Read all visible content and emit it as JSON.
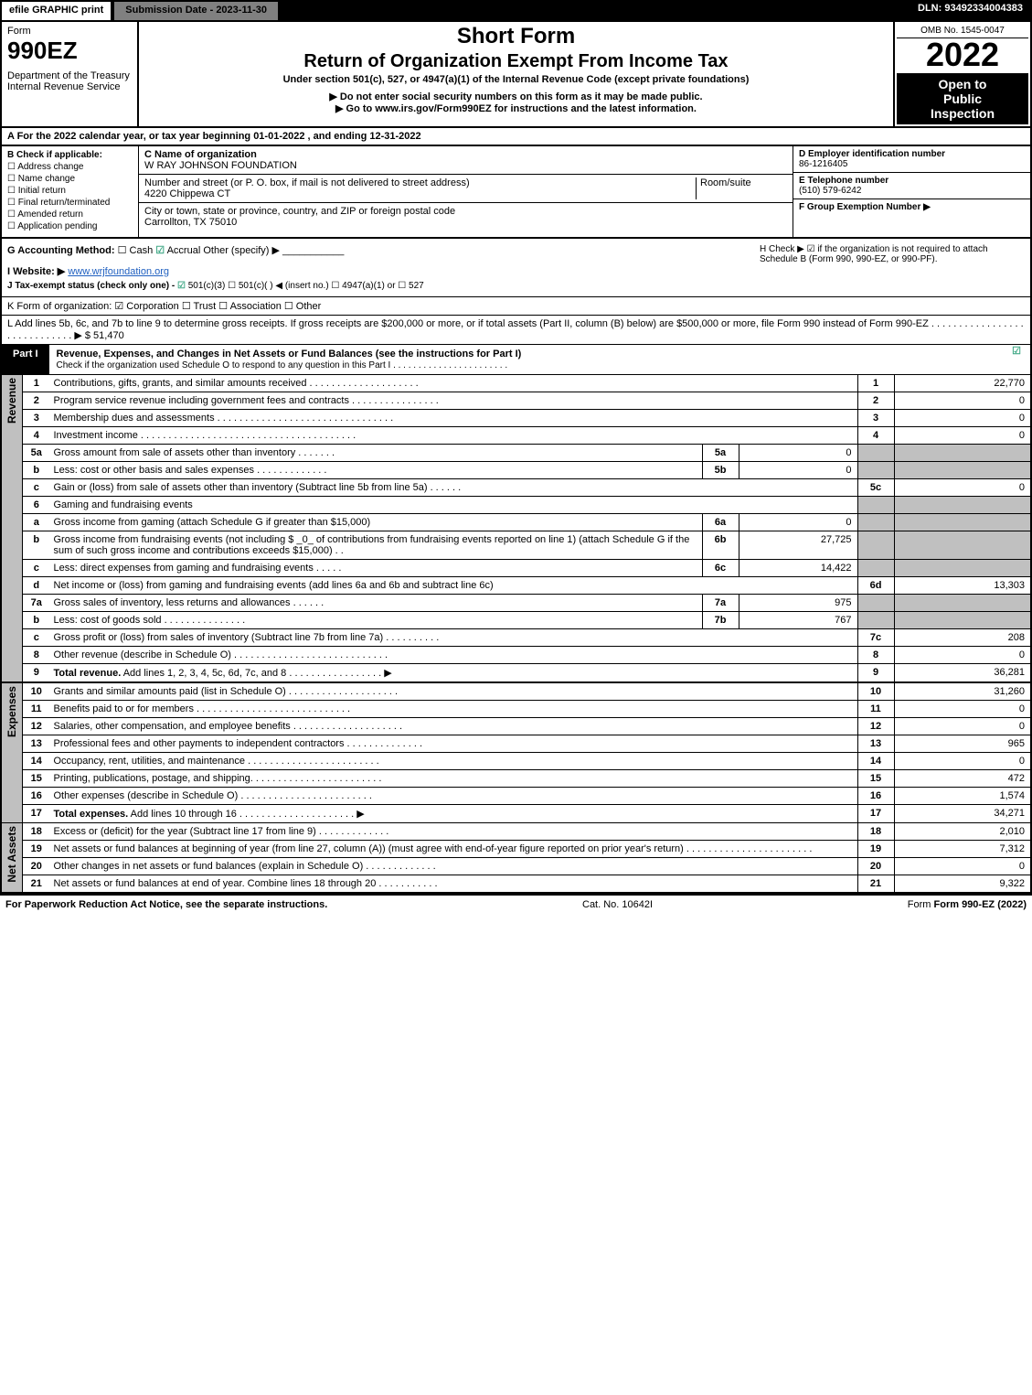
{
  "topbar": {
    "efile": "efile GRAPHIC print",
    "subdate_label": "Submission Date - 2023-11-30",
    "dln": "DLN: 93492334004383"
  },
  "header": {
    "form_label": "Form",
    "form_num": "990EZ",
    "dept1": "Department of the Treasury",
    "dept2": "Internal Revenue Service",
    "title1": "Short Form",
    "title2": "Return of Organization Exempt From Income Tax",
    "sub1": "Under section 501(c), 527, or 4947(a)(1) of the Internal Revenue Code (except private foundations)",
    "sub2": "▶ Do not enter social security numbers on this form as it may be made public.",
    "sub3": "▶ Go to www.irs.gov/Form990EZ for instructions and the latest information.",
    "omb": "OMB No. 1545-0047",
    "year": "2022",
    "open1": "Open to",
    "open2": "Public",
    "open3": "Inspection"
  },
  "lineA": "A  For the 2022 calendar year, or tax year beginning 01-01-2022 , and ending 12-31-2022",
  "sectionB": {
    "label": "B  Check if applicable:",
    "opts": [
      "Address change",
      "Name change",
      "Initial return",
      "Final return/terminated",
      "Amended return",
      "Application pending"
    ]
  },
  "sectionC": {
    "c_label": "C Name of organization",
    "org_name": "W RAY JOHNSON FOUNDATION",
    "addr_label": "Number and street (or P. O. box, if mail is not delivered to street address)",
    "room_label": "Room/suite",
    "addr": "4220 Chippewa CT",
    "city_label": "City or town, state or province, country, and ZIP or foreign postal code",
    "city": "Carrollton, TX  75010"
  },
  "sectionD": {
    "d_label": "D Employer identification number",
    "ein": "86-1216405",
    "e_label": "E Telephone number",
    "phone": "(510) 579-6242",
    "f_label": "F Group Exemption Number  ▶"
  },
  "sectionG": {
    "g_label": "G Accounting Method:",
    "g_cash": "Cash",
    "g_accrual": "Accrual",
    "g_other": "Other (specify) ▶",
    "i_label": "I Website: ▶",
    "website": "www.wrjfoundation.org",
    "j_label": "J Tax-exempt status (check only one) -",
    "j_opts": "501(c)(3)   ☐ 501(c)(  ) ◀ (insert no.)   ☐ 4947(a)(1) or   ☐ 527"
  },
  "sectionH": "H  Check ▶ ☑ if the organization is not required to attach Schedule B (Form 990, 990-EZ, or 990-PF).",
  "lineK": "K Form of organization:   ☑ Corporation   ☐ Trust   ☐ Association   ☐ Other",
  "lineL": {
    "text": "L Add lines 5b, 6c, and 7b to line 9 to determine gross receipts. If gross receipts are $200,000 or more, or if total assets (Part II, column (B) below) are $500,000 or more, file Form 990 instead of Form 990-EZ  . . . . . . . . . . . . . . . . . . . . . . . . . . . . . ▶",
    "amount": "$ 51,470"
  },
  "part1": {
    "tab": "Part I",
    "title": "Revenue, Expenses, and Changes in Net Assets or Fund Balances (see the instructions for Part I)",
    "sub": "Check if the organization used Schedule O to respond to any question in this Part I . . . . . . . . . . . . . . . . . . . . . . ."
  },
  "sidebars": {
    "revenue": "Revenue",
    "expenses": "Expenses",
    "netassets": "Net Assets"
  },
  "rows": [
    {
      "n": "1",
      "desc": "Contributions, gifts, grants, and similar amounts received . . . . . . . . . . . . . . . . . . . .",
      "ln": "1",
      "amt": "22,770"
    },
    {
      "n": "2",
      "desc": "Program service revenue including government fees and contracts . . . . . . . . . . . . . . . .",
      "ln": "2",
      "amt": "0"
    },
    {
      "n": "3",
      "desc": "Membership dues and assessments . . . . . . . . . . . . . . . . . . . . . . . . . . . . . . . .",
      "ln": "3",
      "amt": "0"
    },
    {
      "n": "4",
      "desc": "Investment income . . . . . . . . . . . . . . . . . . . . . . . . . . . . . . . . . . . . . . .",
      "ln": "4",
      "amt": "0"
    },
    {
      "n": "5a",
      "desc": "Gross amount from sale of assets other than inventory . . . . . . .",
      "sub": "5a",
      "subval": "0"
    },
    {
      "n": "b",
      "desc": "Less: cost or other basis and sales expenses . . . . . . . . . . . . .",
      "sub": "5b",
      "subval": "0"
    },
    {
      "n": "c",
      "desc": "Gain or (loss) from sale of assets other than inventory (Subtract line 5b from line 5a) . . . . . .",
      "ln": "5c",
      "amt": "0"
    },
    {
      "n": "6",
      "desc": "Gaming and fundraising events"
    },
    {
      "n": "a",
      "desc": "Gross income from gaming (attach Schedule G if greater than $15,000)",
      "sub": "6a",
      "subval": "0"
    },
    {
      "n": "b",
      "desc": "Gross income from fundraising events (not including $ _0_ of contributions from fundraising events reported on line 1) (attach Schedule G if the sum of such gross income and contributions exceeds $15,000)   . .",
      "sub": "6b",
      "subval": "27,725"
    },
    {
      "n": "c",
      "desc": "Less: direct expenses from gaming and fundraising events   . . . . .",
      "sub": "6c",
      "subval": "14,422"
    },
    {
      "n": "d",
      "desc": "Net income or (loss) from gaming and fundraising events (add lines 6a and 6b and subtract line 6c)",
      "ln": "6d",
      "amt": "13,303"
    },
    {
      "n": "7a",
      "desc": "Gross sales of inventory, less returns and allowances . . . . . .",
      "sub": "7a",
      "subval": "975"
    },
    {
      "n": "b",
      "desc": "Less: cost of goods sold       . . . . . . . . . . . . . . .",
      "sub": "7b",
      "subval": "767"
    },
    {
      "n": "c",
      "desc": "Gross profit or (loss) from sales of inventory (Subtract line 7b from line 7a) . . . . . . . . . .",
      "ln": "7c",
      "amt": "208"
    },
    {
      "n": "8",
      "desc": "Other revenue (describe in Schedule O) . . . . . . . . . . . . . . . . . . . . . . . . . . . .",
      "ln": "8",
      "amt": "0"
    },
    {
      "n": "9",
      "desc": "Total revenue. Add lines 1, 2, 3, 4, 5c, 6d, 7c, and 8  . . . . . . . . . . . . . . . . .   ▶",
      "ln": "9",
      "amt": "36,281",
      "bold": true
    }
  ],
  "exp_rows": [
    {
      "n": "10",
      "desc": "Grants and similar amounts paid (list in Schedule O) . . . . . . . . . . . . . . . . . . . .",
      "ln": "10",
      "amt": "31,260"
    },
    {
      "n": "11",
      "desc": "Benefits paid to or for members    . . . . . . . . . . . . . . . . . . . . . . . . . . . .",
      "ln": "11",
      "amt": "0"
    },
    {
      "n": "12",
      "desc": "Salaries, other compensation, and employee benefits . . . . . . . . . . . . . . . . . . . .",
      "ln": "12",
      "amt": "0"
    },
    {
      "n": "13",
      "desc": "Professional fees and other payments to independent contractors . . . . . . . . . . . . . .",
      "ln": "13",
      "amt": "965"
    },
    {
      "n": "14",
      "desc": "Occupancy, rent, utilities, and maintenance . . . . . . . . . . . . . . . . . . . . . . . .",
      "ln": "14",
      "amt": "0"
    },
    {
      "n": "15",
      "desc": "Printing, publications, postage, and shipping. . . . . . . . . . . . . . . . . . . . . . . .",
      "ln": "15",
      "amt": "472"
    },
    {
      "n": "16",
      "desc": "Other expenses (describe in Schedule O)    . . . . . . . . . . . . . . . . . . . . . . . .",
      "ln": "16",
      "amt": "1,574"
    },
    {
      "n": "17",
      "desc": "Total expenses. Add lines 10 through 16     . . . . . . . . . . . . . . . . . . . . .   ▶",
      "ln": "17",
      "amt": "34,271",
      "bold": true
    }
  ],
  "net_rows": [
    {
      "n": "18",
      "desc": "Excess or (deficit) for the year (Subtract line 17 from line 9)       . . . . . . . . . . . . .",
      "ln": "18",
      "amt": "2,010"
    },
    {
      "n": "19",
      "desc": "Net assets or fund balances at beginning of year (from line 27, column (A)) (must agree with end-of-year figure reported on prior year's return) . . . . . . . . . . . . . . . . . . . . . . .",
      "ln": "19",
      "amt": "7,312"
    },
    {
      "n": "20",
      "desc": "Other changes in net assets or fund balances (explain in Schedule O) . . . . . . . . . . . . .",
      "ln": "20",
      "amt": "0"
    },
    {
      "n": "21",
      "desc": "Net assets or fund balances at end of year. Combine lines 18 through 20 . . . . . . . . . . .",
      "ln": "21",
      "amt": "9,322"
    }
  ],
  "footer": {
    "left": "For Paperwork Reduction Act Notice, see the separate instructions.",
    "mid": "Cat. No. 10642I",
    "right": "Form 990-EZ (2022)"
  }
}
